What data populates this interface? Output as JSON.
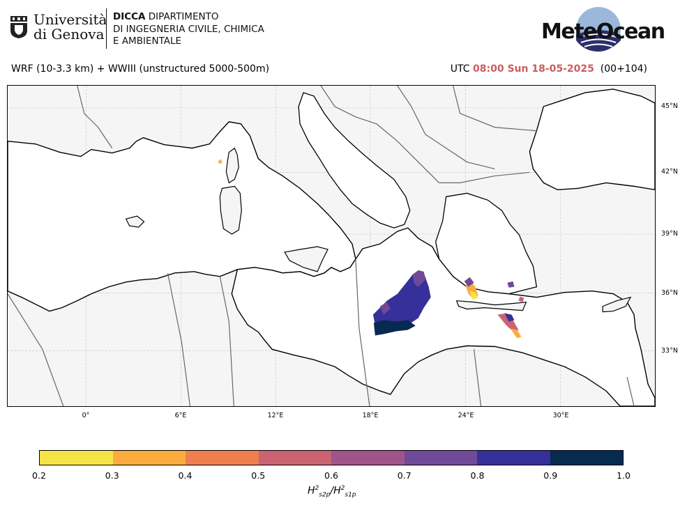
{
  "header": {
    "university_line1": "Università",
    "university_line2": "di Genova",
    "dept_bold": "DICCA",
    "dept_line1_rest": " DIPARTIMENTO",
    "dept_line2": "DI INGEGNERIA CIVILE, CHIMICA",
    "dept_line3": "E AMBIENTALE",
    "brand": "MeteOcean"
  },
  "subtitle": {
    "model": "WRF (10-3.3 km) + WWIII (unstructured 5000-500m)",
    "utc_label": "UTC",
    "datetime": "08:00 Sun 18-05-2025",
    "forecast_step": "(00+104)"
  },
  "map": {
    "lon_labels": [
      "0°",
      "6°E",
      "12°E",
      "18°E",
      "24°E",
      "30°E"
    ],
    "lat_labels": [
      "45°N",
      "42°N",
      "39°N",
      "36°N",
      "33°N"
    ],
    "colors": {
      "land": "#f5f5f5",
      "sea": "#ffffff",
      "coast": "#000000",
      "border": "#666666"
    }
  },
  "colorbar": {
    "ticks": [
      "0.2",
      "0.3",
      "0.4",
      "0.5",
      "0.6",
      "0.7",
      "0.8",
      "0.9",
      "1.0"
    ],
    "colors": [
      "#f4e446",
      "#fcac3e",
      "#f07f4f",
      "#cc6372",
      "#a05489",
      "#704a98",
      "#36309a",
      "#062a50"
    ],
    "label_base1": "H",
    "label_sup": "2",
    "label_sub1": "s2p",
    "label_slash": "/H",
    "label_sub2": "s1p"
  }
}
